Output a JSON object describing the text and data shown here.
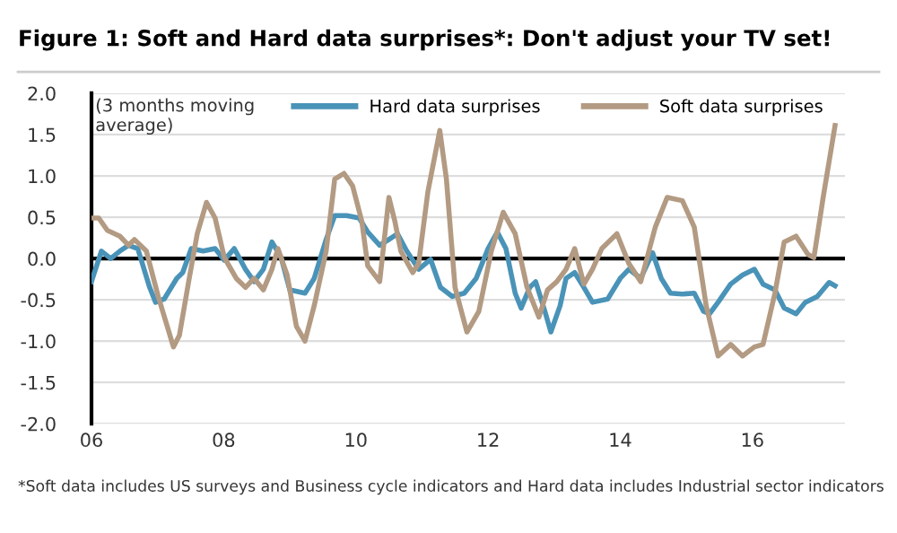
{
  "chart_data": {
    "type": "line",
    "title": "Figure 1: Soft and Hard data surprises*: Don't adjust your TV set!",
    "annotations": [
      "(3 months moving\naverage)",
      "*Soft data includes US surveys and Business cycle indicators and Hard data includes Industrial sector indicators"
    ],
    "series": [
      {
        "name": "Hard data surprises",
        "color": "#4a93b8",
        "x": [
          2006.0,
          2006.15,
          2006.29,
          2006.43,
          2006.56,
          2006.7,
          2006.88,
          2006.97,
          2007.1,
          2007.29,
          2007.38,
          2007.51,
          2007.69,
          2007.87,
          2008.01,
          2008.16,
          2008.33,
          2008.46,
          2008.6,
          2008.73,
          2008.87,
          2009.0,
          2009.23,
          2009.37,
          2009.55,
          2009.68,
          2009.86,
          2010.05,
          2010.18,
          2010.36,
          2010.5,
          2010.63,
          2010.77,
          2010.95,
          2011.13,
          2011.28,
          2011.46,
          2011.64,
          2011.82,
          2012.0,
          2012.14,
          2012.27,
          2012.41,
          2012.5,
          2012.63,
          2012.72,
          2012.86,
          2012.95,
          2013.09,
          2013.18,
          2013.31,
          2013.45,
          2013.58,
          2013.81,
          2014.0,
          2014.13,
          2014.31,
          2014.49,
          2014.62,
          2014.76,
          2014.94,
          2015.12,
          2015.26,
          2015.35,
          2015.48,
          2015.67,
          2015.85,
          2016.03,
          2016.16,
          2016.34,
          2016.48,
          2016.66,
          2016.8,
          2016.98,
          2017.16,
          2017.25
        ],
        "values": [
          -0.28,
          0.09,
          0.0,
          0.09,
          0.16,
          0.12,
          -0.35,
          -0.53,
          -0.49,
          -0.24,
          -0.17,
          0.12,
          0.09,
          0.12,
          -0.02,
          0.12,
          -0.13,
          -0.28,
          -0.13,
          0.2,
          0.01,
          -0.38,
          -0.42,
          -0.24,
          0.23,
          0.52,
          0.52,
          0.49,
          0.32,
          0.16,
          0.23,
          0.3,
          0.09,
          -0.13,
          -0.01,
          -0.35,
          -0.46,
          -0.42,
          -0.24,
          0.12,
          0.32,
          0.12,
          -0.42,
          -0.6,
          -0.35,
          -0.28,
          -0.64,
          -0.89,
          -0.57,
          -0.24,
          -0.17,
          -0.35,
          -0.53,
          -0.49,
          -0.24,
          -0.13,
          -0.24,
          0.07,
          -0.24,
          -0.42,
          -0.43,
          -0.42,
          -0.64,
          -0.67,
          -0.53,
          -0.31,
          -0.2,
          -0.13,
          -0.31,
          -0.38,
          -0.6,
          -0.67,
          -0.53,
          -0.46,
          -0.29,
          -0.33
        ]
      },
      {
        "name": "Soft data surprises",
        "color": "#b39a82",
        "x": [
          2006.0,
          2006.11,
          2006.24,
          2006.43,
          2006.56,
          2006.65,
          2006.83,
          2007.01,
          2007.24,
          2007.33,
          2007.47,
          2007.6,
          2007.74,
          2007.87,
          2008.01,
          2008.19,
          2008.33,
          2008.46,
          2008.6,
          2008.73,
          2008.82,
          2008.96,
          2009.1,
          2009.23,
          2009.37,
          2009.55,
          2009.68,
          2009.82,
          2009.95,
          2010.09,
          2010.18,
          2010.36,
          2010.5,
          2010.59,
          2010.68,
          2010.86,
          2010.95,
          2011.09,
          2011.27,
          2011.37,
          2011.5,
          2011.68,
          2011.86,
          2012.05,
          2012.23,
          2012.41,
          2012.59,
          2012.77,
          2012.9,
          2013.04,
          2013.18,
          2013.31,
          2013.45,
          2013.58,
          2013.72,
          2013.95,
          2014.13,
          2014.31,
          2014.53,
          2014.71,
          2014.94,
          2015.12,
          2015.3,
          2015.48,
          2015.67,
          2015.85,
          2016.03,
          2016.16,
          2016.34,
          2016.48,
          2016.66,
          2016.84,
          2016.93,
          2017.07,
          2017.25
        ],
        "values": [
          0.49,
          0.49,
          0.34,
          0.27,
          0.16,
          0.23,
          0.09,
          -0.46,
          -1.07,
          -0.93,
          -0.28,
          0.3,
          0.68,
          0.49,
          0.01,
          -0.24,
          -0.35,
          -0.24,
          -0.38,
          -0.13,
          0.12,
          -0.2,
          -0.82,
          -1.0,
          -0.57,
          0.09,
          0.96,
          1.03,
          0.88,
          0.45,
          -0.09,
          -0.28,
          0.74,
          0.45,
          0.09,
          -0.17,
          -0.06,
          0.81,
          1.55,
          0.96,
          -0.35,
          -0.89,
          -0.64,
          0.09,
          0.56,
          0.3,
          -0.35,
          -0.71,
          -0.38,
          -0.28,
          -0.13,
          0.12,
          -0.31,
          -0.13,
          0.12,
          0.3,
          -0.06,
          -0.28,
          0.38,
          0.74,
          0.7,
          0.38,
          -0.57,
          -1.18,
          -1.04,
          -1.18,
          -1.07,
          -1.04,
          -0.42,
          0.2,
          0.27,
          0.05,
          0.01,
          0.74,
          1.61
        ]
      }
    ],
    "xlim": [
      2006,
      2017.4
    ],
    "xticks": [
      {
        "value": 2006,
        "label": "06"
      },
      {
        "value": 2008,
        "label": "08"
      },
      {
        "value": 2010,
        "label": "10"
      },
      {
        "value": 2012,
        "label": "12"
      },
      {
        "value": 2014,
        "label": "14"
      },
      {
        "value": 2016,
        "label": "16"
      }
    ],
    "ylim": [
      -2.0,
      2.0
    ],
    "yticks": [
      {
        "value": -2,
        "label": "-2.0"
      },
      {
        "value": -1.5,
        "label": "-1.5"
      },
      {
        "value": -1,
        "label": "-1.0"
      },
      {
        "value": -0.5,
        "label": "-0.5"
      },
      {
        "value": 0,
        "label": "0.0"
      },
      {
        "value": 0.5,
        "label": "0.5"
      },
      {
        "value": 1,
        "label": "1.0"
      },
      {
        "value": 1.5,
        "label": "1.5"
      },
      {
        "value": 2,
        "label": "2.0"
      }
    ],
    "ref_lines": [
      {
        "axis": "y",
        "value": 0,
        "color": "#000000"
      }
    ],
    "grid": "y",
    "legend": "top",
    "marker": "none",
    "line_style": "solid"
  }
}
